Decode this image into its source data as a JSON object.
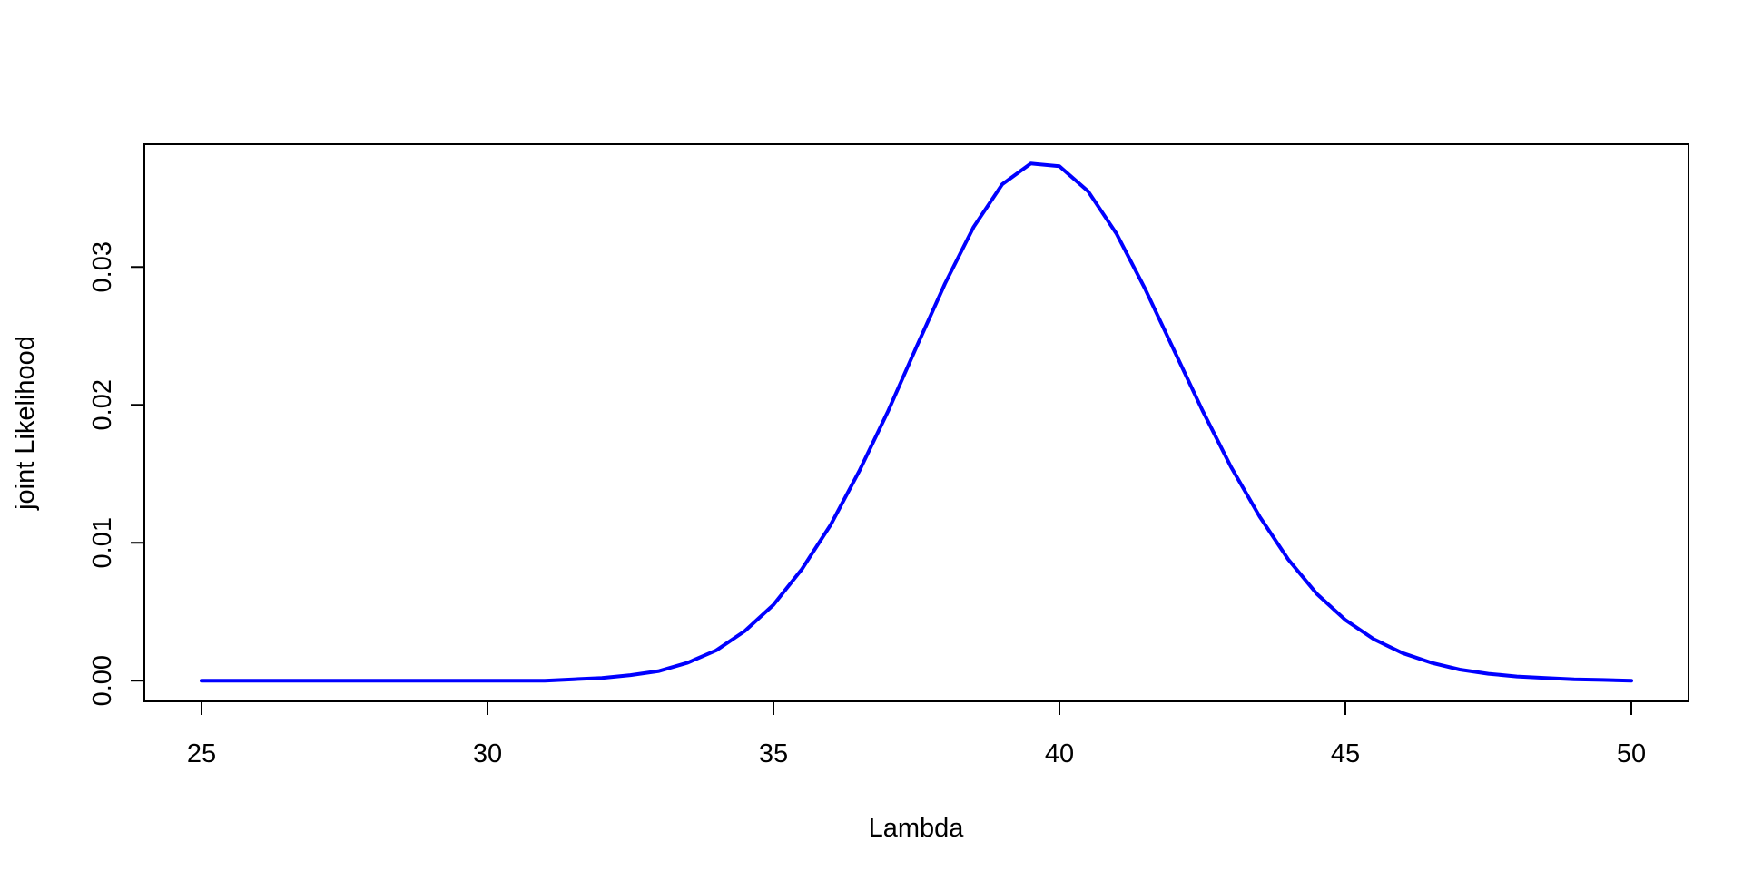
{
  "chart_data": {
    "type": "line",
    "title": "",
    "xlabel": "Lambda",
    "ylabel": "joint Likelihood",
    "xlim": [
      24,
      51
    ],
    "ylim": [
      -0.0015,
      0.0389
    ],
    "x_ticks": [
      25,
      30,
      35,
      40,
      45,
      50
    ],
    "x_tick_labels": [
      "25",
      "30",
      "35",
      "40",
      "45",
      "50"
    ],
    "y_ticks": [
      0.0,
      0.01,
      0.02,
      0.03
    ],
    "y_tick_labels": [
      "0.00",
      "0.01",
      "0.02",
      "0.03"
    ],
    "grid": false,
    "legend": "none",
    "series": [
      {
        "color": "#0000ff",
        "x": [
          25,
          26,
          27,
          28,
          29,
          30,
          31,
          31.5,
          32,
          32.5,
          33,
          33.5,
          34,
          34.5,
          35,
          35.5,
          36,
          36.5,
          37,
          37.5,
          38,
          38.5,
          39,
          39.5,
          40,
          40.5,
          41,
          41.5,
          42,
          42.5,
          43,
          43.5,
          44,
          44.5,
          45,
          45.5,
          46,
          46.5,
          47,
          47.5,
          48,
          48.5,
          49,
          49.5,
          50
        ],
        "y": [
          0.0,
          0.0,
          0.0,
          0.0,
          0.0,
          0.0,
          0.0,
          0.0001,
          0.0002,
          0.0004,
          0.0007,
          0.0013,
          0.0022,
          0.0036,
          0.0055,
          0.0081,
          0.0113,
          0.0152,
          0.0195,
          0.0242,
          0.0288,
          0.0329,
          0.036,
          0.0375,
          0.0373,
          0.0355,
          0.0324,
          0.0284,
          0.024,
          0.0196,
          0.0155,
          0.0119,
          0.0088,
          0.0063,
          0.0044,
          0.003,
          0.002,
          0.0013,
          0.0008,
          0.0005,
          0.0003,
          0.0002,
          0.0001,
          5e-05,
          0.0
        ]
      }
    ]
  }
}
